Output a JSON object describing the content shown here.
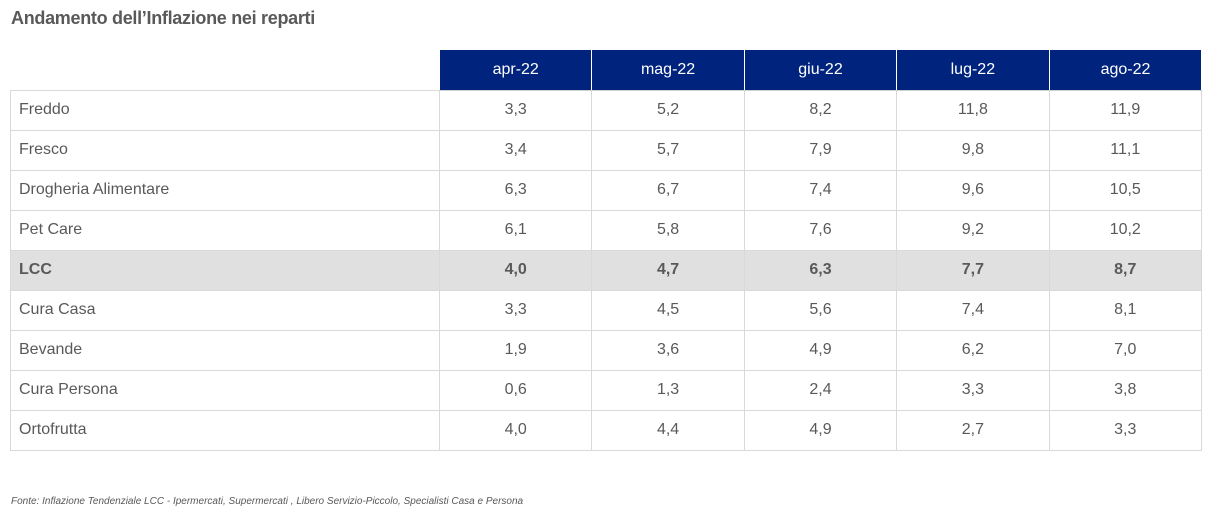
{
  "title": "Andamento dell’Inflazione nei reparti",
  "table": {
    "columns": [
      "apr-22",
      "mag-22",
      "giu-22",
      "lug-22",
      "ago-22"
    ],
    "rows": [
      {
        "label": "Freddo",
        "values": [
          "3,3",
          "5,2",
          "8,2",
          "11,8",
          "11,9"
        ],
        "highlight": false
      },
      {
        "label": "Fresco",
        "values": [
          "3,4",
          "5,7",
          "7,9",
          "9,8",
          "11,1"
        ],
        "highlight": false
      },
      {
        "label": "Drogheria Alimentare",
        "values": [
          "6,3",
          "6,7",
          "7,4",
          "9,6",
          "10,5"
        ],
        "highlight": false
      },
      {
        "label": "Pet Care",
        "values": [
          "6,1",
          "5,8",
          "7,6",
          "9,2",
          "10,2"
        ],
        "highlight": false
      },
      {
        "label": "LCC",
        "values": [
          "4,0",
          "4,7",
          "6,3",
          "7,7",
          "8,7"
        ],
        "highlight": true
      },
      {
        "label": "Cura Casa",
        "values": [
          "3,3",
          "4,5",
          "5,6",
          "7,4",
          "8,1"
        ],
        "highlight": false
      },
      {
        "label": "Bevande",
        "values": [
          "1,9",
          "3,6",
          "4,9",
          "6,2",
          "7,0"
        ],
        "highlight": false
      },
      {
        "label": "Cura Persona",
        "values": [
          "0,6",
          "1,3",
          "2,4",
          "3,3",
          "3,8"
        ],
        "highlight": false
      },
      {
        "label": "Ortofrutta",
        "values": [
          "4,0",
          "4,4",
          "4,9",
          "2,7",
          "3,3"
        ],
        "highlight": false
      }
    ]
  },
  "source": "Fonte: Inflazione Tendenziale LCC  - Ipermercati, Supermercati , Libero Servizio-Piccolo, Specialisti Casa e Persona",
  "colors": {
    "header_bg": "#00247d",
    "header_text": "#ffffff",
    "highlight_row_bg": "#e0e0e0",
    "text": "#595959",
    "border": "#d9d9d9"
  }
}
